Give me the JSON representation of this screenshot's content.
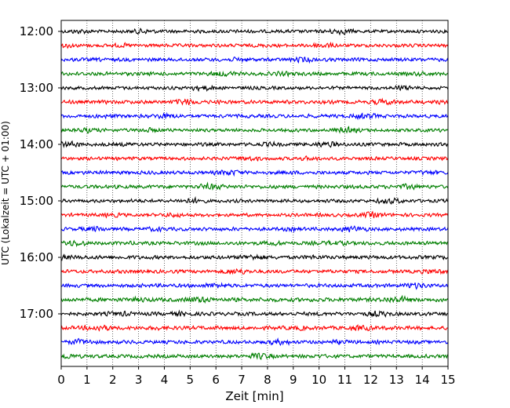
{
  "chart_data": {
    "type": "line",
    "title": "",
    "xlabel": "Zeit  [min]",
    "ylabel": "UTC (Lokalzeit = UTC + 01:00)",
    "xlim": [
      0,
      15
    ],
    "x_ticks": [
      "0",
      "1",
      "2",
      "3",
      "4",
      "5",
      "6",
      "7",
      "8",
      "9",
      "10",
      "11",
      "12",
      "13",
      "14",
      "15"
    ],
    "y_ticks": [
      "12:00",
      "13:00",
      "14:00",
      "15:00",
      "16:00",
      "17:00"
    ],
    "grid": "vertical dotted lines at each minute",
    "trace_interval_min": 15,
    "trace_colors": [
      "#000000",
      "#ff0000",
      "#0000ff",
      "#007f00"
    ],
    "traces": [
      {
        "start": "12:00",
        "amplitude": 0.3
      },
      {
        "start": "12:15",
        "amplitude": 0.3
      },
      {
        "start": "12:30",
        "amplitude": 0.32
      },
      {
        "start": "12:45",
        "amplitude": 0.32
      },
      {
        "start": "13:00",
        "amplitude": 0.3
      },
      {
        "start": "13:15",
        "amplitude": 0.32
      },
      {
        "start": "13:30",
        "amplitude": 0.32
      },
      {
        "start": "13:45",
        "amplitude": 0.3
      },
      {
        "start": "14:00",
        "amplitude": 0.32
      },
      {
        "start": "14:15",
        "amplitude": 0.3
      },
      {
        "start": "14:30",
        "amplitude": 0.32
      },
      {
        "start": "14:45",
        "amplitude": 0.32
      },
      {
        "start": "15:00",
        "amplitude": 0.3
      },
      {
        "start": "15:15",
        "amplitude": 0.3
      },
      {
        "start": "15:30",
        "amplitude": 0.32
      },
      {
        "start": "15:45",
        "amplitude": 0.32
      },
      {
        "start": "16:00",
        "amplitude": 0.34
      },
      {
        "start": "16:15",
        "amplitude": 0.32
      },
      {
        "start": "16:30",
        "amplitude": 0.32
      },
      {
        "start": "16:45",
        "amplitude": 0.36
      },
      {
        "start": "17:00",
        "amplitude": 0.32
      },
      {
        "start": "17:15",
        "amplitude": 0.34
      },
      {
        "start": "17:30",
        "amplitude": 0.32
      },
      {
        "start": "17:45",
        "amplitude": 0.32
      }
    ]
  }
}
